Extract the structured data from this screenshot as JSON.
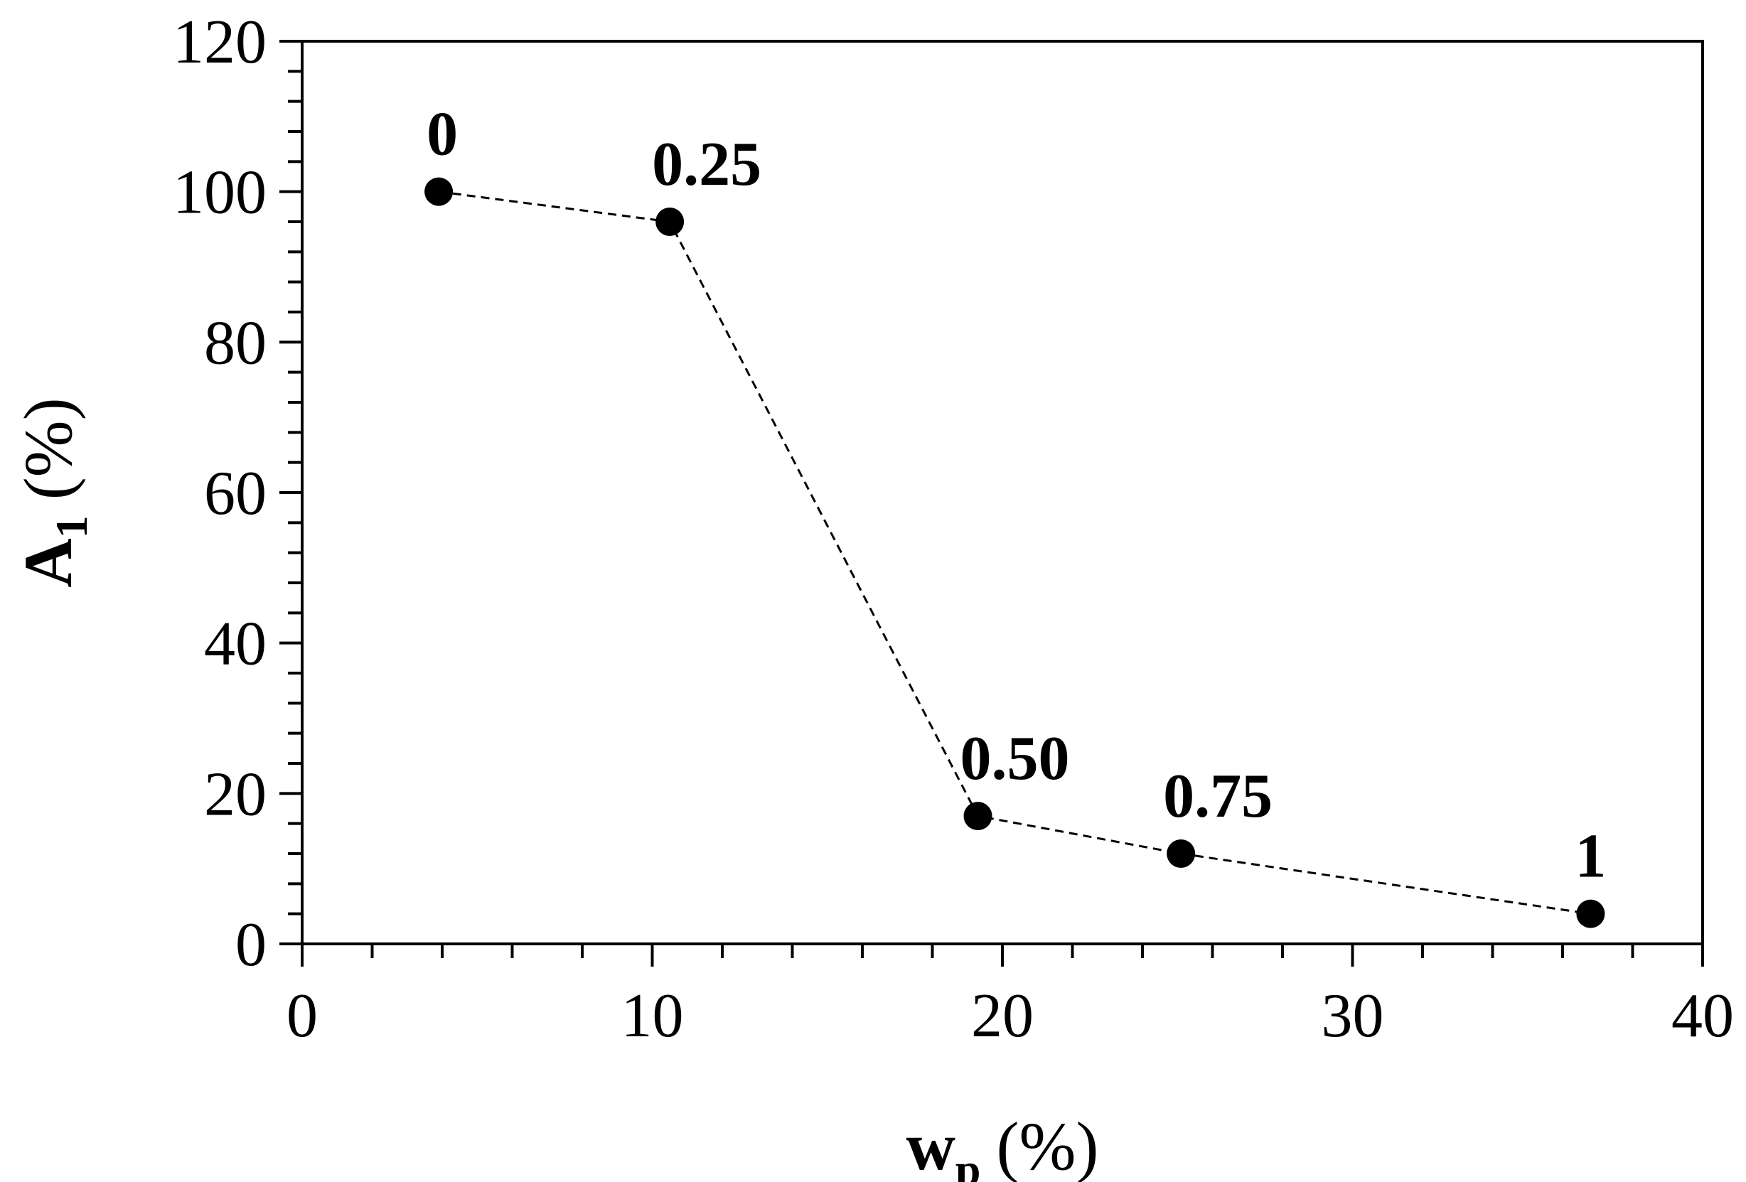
{
  "chart_data": {
    "type": "scatter",
    "title": "",
    "xlabel": {
      "main": "w",
      "sub": "p",
      "unit": "(%)"
    },
    "ylabel": {
      "main": "A",
      "sub": "1",
      "unit": "(%)"
    },
    "xlim": [
      0,
      40
    ],
    "ylim": [
      0,
      120
    ],
    "x_ticks": [
      0,
      10,
      20,
      30,
      40
    ],
    "y_ticks": [
      0,
      20,
      40,
      60,
      80,
      100,
      120
    ],
    "x_minor_step": 2,
    "y_minor_step": 4,
    "grid": false,
    "legend": "none",
    "line_style": "dashed",
    "marker": "filled-circle",
    "color": "#000000",
    "points": [
      {
        "x": 3.9,
        "y": 100,
        "label": "0"
      },
      {
        "x": 10.5,
        "y": 96,
        "label": "0.25"
      },
      {
        "x": 19.3,
        "y": 17,
        "label": "0.50"
      },
      {
        "x": 25.1,
        "y": 12,
        "label": "0.75"
      },
      {
        "x": 36.8,
        "y": 4,
        "label": "1"
      }
    ]
  }
}
